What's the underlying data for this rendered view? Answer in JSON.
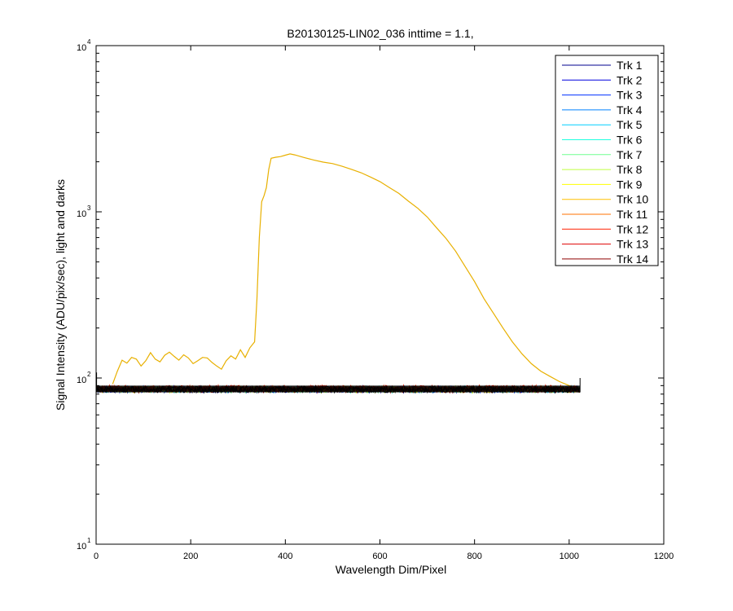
{
  "chart_data": {
    "type": "line",
    "title": "B20130125-LIN02_036 inttime = 1.1,",
    "xlabel": "Wavelength Dim/Pixel",
    "ylabel": "Signal Intensity (ADU/pix/sec), light and darks",
    "xlim": [
      0,
      1200
    ],
    "ylim": [
      10,
      10000
    ],
    "yscale": "log",
    "xticks": [
      "0",
      "200",
      "400",
      "600",
      "800",
      "1000",
      "1200"
    ],
    "yticks": [
      {
        "base": "10",
        "exp": "1"
      },
      {
        "base": "10",
        "exp": "2"
      },
      {
        "base": "10",
        "exp": "3"
      },
      {
        "base": "10",
        "exp": "4"
      }
    ],
    "grid": false,
    "legend_position": "top-right",
    "series": [
      {
        "name": "Trk 1",
        "color": "#00008f",
        "level": 85
      },
      {
        "name": "Trk 2",
        "color": "#0000df",
        "level": 86
      },
      {
        "name": "Trk 3",
        "color": "#0030ff",
        "level": 85
      },
      {
        "name": "Trk 4",
        "color": "#0080ff",
        "level": 86
      },
      {
        "name": "Trk 5",
        "color": "#00cfff",
        "level": 85
      },
      {
        "name": "Trk 6",
        "color": "#20ffdf",
        "level": 86
      },
      {
        "name": "Trk 7",
        "color": "#70ff8f",
        "level": 85
      },
      {
        "name": "Trk 8",
        "color": "#bfff40",
        "level": 86
      },
      {
        "name": "Trk 9",
        "color": "#ffff00",
        "level": 85
      },
      {
        "name": "Trk 10",
        "color": "#ffbf00",
        "level": 86
      },
      {
        "name": "Trk 11",
        "color": "#ff7000",
        "level": 86,
        "x": [
          35,
          45,
          55,
          65,
          75,
          85,
          95,
          105,
          115,
          125,
          135,
          145,
          155,
          165,
          175,
          185,
          195,
          205,
          215,
          225,
          235,
          245,
          255,
          265,
          275,
          285,
          295,
          305,
          315,
          325,
          335,
          340,
          345,
          350,
          355,
          360,
          365,
          370,
          380,
          390,
          400,
          410,
          420,
          440,
          460,
          480,
          500,
          520,
          540,
          560,
          580,
          600,
          620,
          640,
          660,
          680,
          700,
          720,
          740,
          760,
          780,
          800,
          820,
          840,
          860,
          880,
          900,
          920,
          940,
          960,
          980,
          1000,
          1010,
          1020
        ],
        "y": [
          92,
          110,
          128,
          123,
          133,
          130,
          118,
          127,
          142,
          130,
          125,
          137,
          143,
          135,
          128,
          138,
          132,
          122,
          127,
          133,
          132,
          124,
          118,
          113,
          127,
          136,
          130,
          148,
          133,
          152,
          165,
          300,
          700,
          1150,
          1250,
          1400,
          1800,
          2100,
          2130,
          2150,
          2190,
          2230,
          2200,
          2120,
          2050,
          1990,
          1950,
          1880,
          1800,
          1720,
          1620,
          1520,
          1400,
          1290,
          1160,
          1050,
          930,
          800,
          690,
          580,
          470,
          380,
          300,
          245,
          200,
          165,
          140,
          122,
          110,
          102,
          95,
          90,
          88,
          86
        ]
      },
      {
        "name": "Trk 12",
        "color": "#ff2000",
        "level": 87
      },
      {
        "name": "Trk 13",
        "color": "#df0000",
        "level": 86
      },
      {
        "name": "Trk 14",
        "color": "#8f0000",
        "level": 85
      }
    ]
  }
}
